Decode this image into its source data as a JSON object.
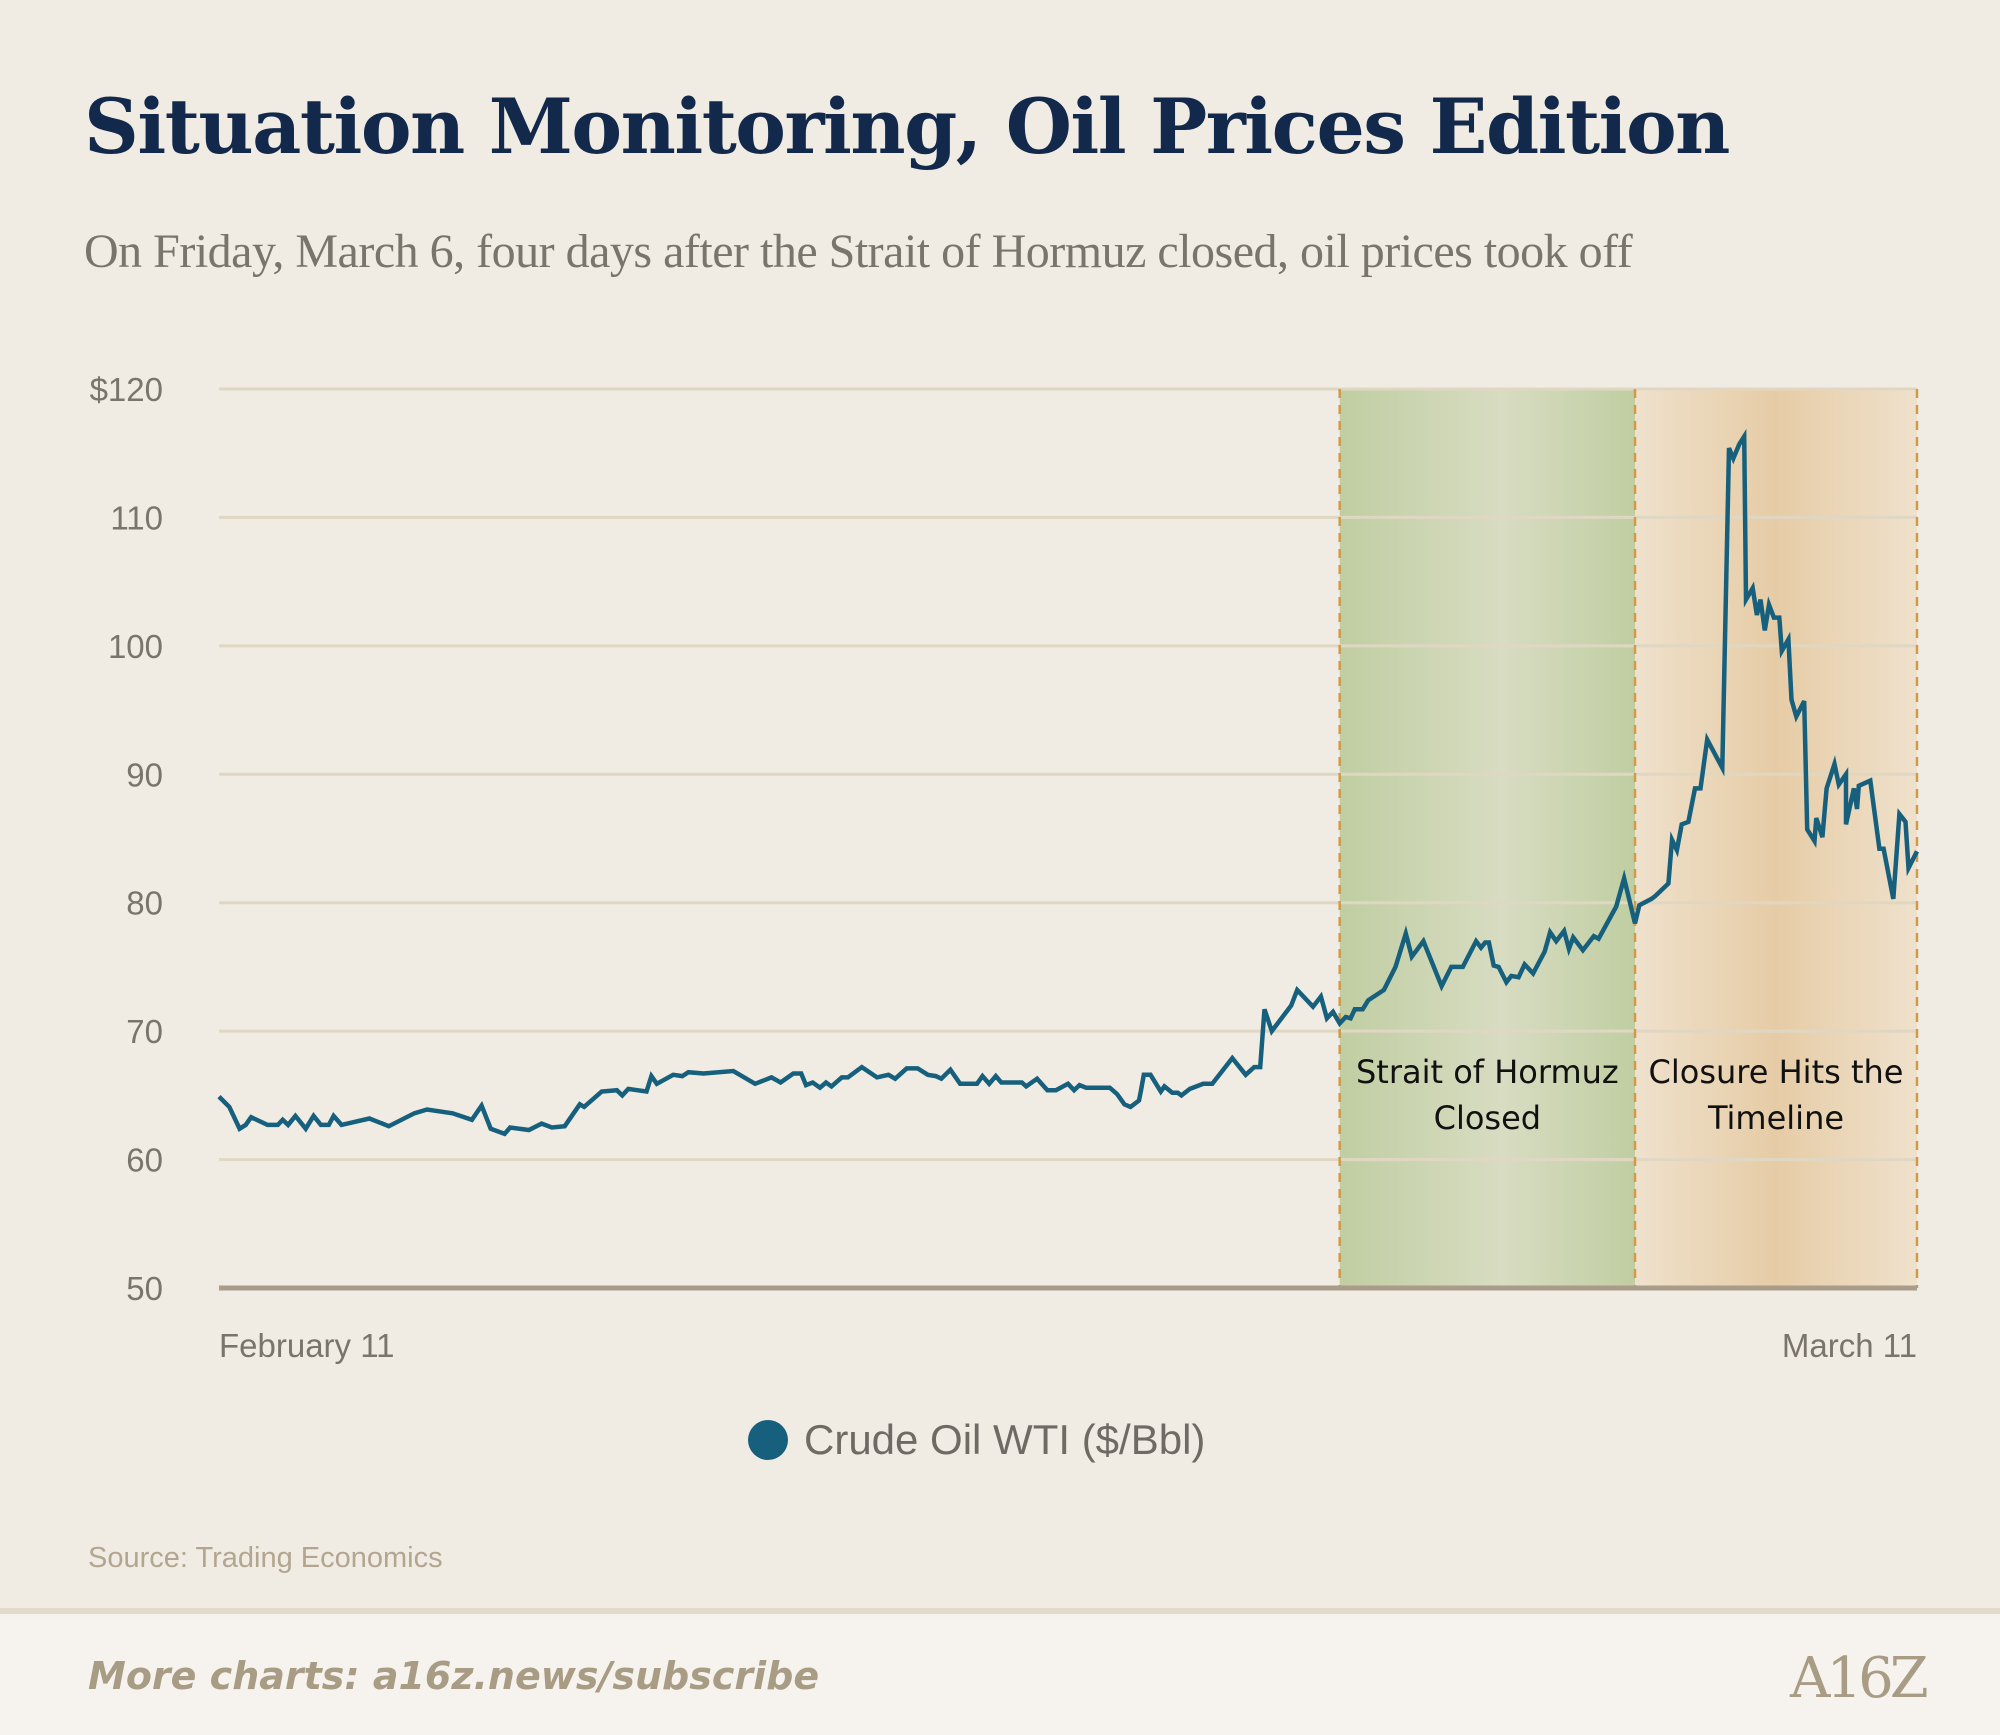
{
  "header": {
    "title": "Situation Monitoring, Oil Prices Edition",
    "subtitle": "On Friday, March 6, four days after the Strait of Hormuz closed, oil prices took off"
  },
  "chart_data": {
    "type": "line",
    "title": "Situation Monitoring, Oil Prices Edition",
    "xlabel": "",
    "ylabel": "",
    "x_unit": "days since February 11",
    "xlim": [
      0,
      28
    ],
    "ylim": [
      50,
      120
    ],
    "yticks": [
      50,
      60,
      70,
      80,
      90,
      100,
      110,
      120
    ],
    "ytick_labels": [
      "50",
      "60",
      "70",
      "80",
      "90",
      "100",
      "110",
      "$120"
    ],
    "xtick_labels": [
      {
        "x": 0,
        "label": "February 11"
      },
      {
        "x": 28,
        "label": "March 11"
      }
    ],
    "grid": true,
    "legend_placement": "bottom-center",
    "series": [
      {
        "name": "Crude Oil WTI ($/Bbl)",
        "color": "#17607d",
        "points": [
          [
            0,
            64.9
          ],
          [
            0.17,
            64.1
          ],
          [
            0.34,
            62.4
          ],
          [
            0.44,
            62.7
          ],
          [
            0.53,
            63.3
          ],
          [
            0.8,
            62.7
          ],
          [
            0.97,
            62.7
          ],
          [
            1.05,
            63.1
          ],
          [
            1.14,
            62.7
          ],
          [
            1.26,
            63.4
          ],
          [
            1.43,
            62.4
          ],
          [
            1.56,
            63.4
          ],
          [
            1.68,
            62.7
          ],
          [
            1.81,
            62.7
          ],
          [
            1.89,
            63.4
          ],
          [
            2.02,
            62.7
          ],
          [
            2.48,
            63.2
          ],
          [
            2.8,
            62.6
          ],
          [
            3.22,
            63.6
          ],
          [
            3.43,
            63.9
          ],
          [
            3.85,
            63.6
          ],
          [
            4.17,
            63.1
          ],
          [
            4.33,
            64.2
          ],
          [
            4.48,
            62.4
          ],
          [
            4.71,
            62.0
          ],
          [
            4.8,
            62.5
          ],
          [
            5.11,
            62.3
          ],
          [
            5.32,
            62.8
          ],
          [
            5.49,
            62.5
          ],
          [
            5.7,
            62.6
          ],
          [
            5.95,
            64.3
          ],
          [
            6.02,
            64.1
          ],
          [
            6.31,
            65.3
          ],
          [
            6.56,
            65.4
          ],
          [
            6.65,
            65.0
          ],
          [
            6.75,
            65.5
          ],
          [
            7.05,
            65.3
          ],
          [
            7.13,
            66.5
          ],
          [
            7.22,
            65.9
          ],
          [
            7.49,
            66.6
          ],
          [
            7.64,
            66.5
          ],
          [
            7.74,
            66.8
          ],
          [
            7.99,
            66.7
          ],
          [
            8.48,
            66.9
          ],
          [
            8.84,
            65.9
          ],
          [
            9.11,
            66.4
          ],
          [
            9.26,
            66.0
          ],
          [
            9.47,
            66.7
          ],
          [
            9.6,
            66.7
          ],
          [
            9.68,
            65.8
          ],
          [
            9.79,
            66.0
          ],
          [
            9.91,
            65.6
          ],
          [
            10.01,
            66.0
          ],
          [
            10.1,
            65.7
          ],
          [
            10.27,
            66.4
          ],
          [
            10.37,
            66.4
          ],
          [
            10.6,
            67.2
          ],
          [
            10.85,
            66.4
          ],
          [
            11.04,
            66.6
          ],
          [
            11.15,
            66.3
          ],
          [
            11.34,
            67.1
          ],
          [
            11.52,
            67.1
          ],
          [
            11.69,
            66.6
          ],
          [
            11.82,
            66.5
          ],
          [
            11.91,
            66.3
          ],
          [
            12.06,
            67.0
          ],
          [
            12.22,
            65.9
          ],
          [
            12.5,
            65.9
          ],
          [
            12.59,
            66.5
          ],
          [
            12.7,
            65.9
          ],
          [
            12.81,
            66.5
          ],
          [
            12.9,
            66.0
          ],
          [
            13.24,
            66.0
          ],
          [
            13.31,
            65.7
          ],
          [
            13.49,
            66.3
          ],
          [
            13.66,
            65.4
          ],
          [
            13.8,
            65.4
          ],
          [
            14.0,
            65.9
          ],
          [
            14.1,
            65.4
          ],
          [
            14.19,
            65.8
          ],
          [
            14.3,
            65.6
          ],
          [
            14.69,
            65.6
          ],
          [
            14.81,
            65.1
          ],
          [
            14.93,
            64.3
          ],
          [
            15.03,
            64.1
          ],
          [
            15.17,
            64.6
          ],
          [
            15.2,
            65.3
          ],
          [
            15.25,
            66.6
          ],
          [
            15.36,
            66.6
          ],
          [
            15.53,
            65.3
          ],
          [
            15.59,
            65.7
          ],
          [
            15.72,
            65.2
          ],
          [
            15.81,
            65.2
          ],
          [
            15.87,
            65.0
          ],
          [
            16.01,
            65.5
          ],
          [
            16.23,
            65.9
          ],
          [
            16.38,
            65.9
          ],
          [
            16.71,
            67.9
          ],
          [
            16.93,
            66.6
          ],
          [
            17.07,
            67.2
          ],
          [
            17.17,
            67.2
          ],
          [
            17.24,
            71.7
          ],
          [
            17.36,
            70.0
          ],
          [
            17.68,
            72.0
          ],
          [
            17.78,
            73.2
          ],
          [
            18.04,
            71.9
          ],
          [
            18.17,
            72.7
          ],
          [
            18.27,
            71.0
          ],
          [
            18.37,
            71.5
          ],
          [
            18.48,
            70.6
          ],
          [
            18.58,
            71.1
          ],
          [
            18.66,
            71.0
          ],
          [
            18.73,
            71.7
          ],
          [
            18.86,
            71.7
          ],
          [
            18.95,
            72.4
          ],
          [
            19.21,
            73.2
          ],
          [
            19.4,
            75.0
          ],
          [
            19.57,
            77.6
          ],
          [
            19.67,
            75.8
          ],
          [
            19.86,
            77.0
          ],
          [
            20.16,
            73.5
          ],
          [
            20.32,
            75.0
          ],
          [
            20.51,
            75.0
          ],
          [
            20.73,
            77.0
          ],
          [
            20.81,
            76.5
          ],
          [
            20.88,
            76.9
          ],
          [
            20.94,
            76.9
          ],
          [
            21.02,
            75.1
          ],
          [
            21.1,
            75.0
          ],
          [
            21.23,
            73.8
          ],
          [
            21.31,
            74.3
          ],
          [
            21.43,
            74.2
          ],
          [
            21.53,
            75.2
          ],
          [
            21.67,
            74.5
          ],
          [
            21.86,
            76.2
          ],
          [
            21.95,
            77.7
          ],
          [
            22.05,
            77.0
          ],
          [
            22.18,
            77.8
          ],
          [
            22.26,
            76.4
          ],
          [
            22.33,
            77.3
          ],
          [
            22.49,
            76.3
          ],
          [
            22.67,
            77.4
          ],
          [
            22.75,
            77.2
          ],
          [
            23.04,
            79.7
          ],
          [
            23.17,
            81.9
          ],
          [
            23.35,
            78.4
          ],
          [
            23.42,
            79.8
          ],
          [
            23.62,
            80.3
          ],
          [
            23.68,
            80.5
          ],
          [
            23.9,
            81.5
          ],
          [
            23.96,
            84.9
          ],
          [
            24.04,
            84.1
          ],
          [
            24.12,
            86.1
          ],
          [
            24.23,
            86.3
          ],
          [
            24.34,
            88.9
          ],
          [
            24.43,
            88.9
          ],
          [
            24.54,
            92.7
          ],
          [
            24.79,
            90.5
          ],
          [
            24.9,
            115.4
          ],
          [
            24.97,
            114.6
          ],
          [
            25.07,
            115.7
          ],
          [
            25.15,
            116.3
          ],
          [
            25.18,
            103.6
          ],
          [
            25.29,
            104.5
          ],
          [
            25.36,
            102.4
          ],
          [
            25.42,
            103.6
          ],
          [
            25.49,
            101.2
          ],
          [
            25.56,
            103.2
          ],
          [
            25.64,
            102.2
          ],
          [
            25.73,
            102.2
          ],
          [
            25.77,
            99.6
          ],
          [
            25.88,
            100.5
          ],
          [
            25.93,
            95.8
          ],
          [
            26.01,
            94.5
          ],
          [
            26.14,
            95.7
          ],
          [
            26.19,
            85.7
          ],
          [
            26.31,
            84.8
          ],
          [
            26.34,
            86.6
          ],
          [
            26.44,
            85.1
          ],
          [
            26.51,
            88.9
          ],
          [
            26.64,
            90.8
          ],
          [
            26.71,
            89.2
          ],
          [
            26.83,
            90.0
          ],
          [
            26.83,
            86.1
          ],
          [
            26.96,
            88.9
          ],
          [
            27.01,
            87.3
          ],
          [
            27.04,
            89.1
          ],
          [
            27.23,
            89.5
          ],
          [
            27.38,
            84.2
          ],
          [
            27.45,
            84.2
          ],
          [
            27.61,
            80.3
          ],
          [
            27.71,
            86.9
          ],
          [
            27.81,
            86.3
          ],
          [
            27.86,
            82.7
          ],
          [
            28.0,
            84.0
          ]
        ]
      }
    ],
    "annotations": [
      {
        "label": "Strait of Hormuz Closed",
        "lines": [
          "Strait of Hormuz",
          "Closed"
        ],
        "x_start": 18.48,
        "x_end": 23.35,
        "color": "#c3cfa6"
      },
      {
        "label": "Closure Hits the Timeline",
        "lines": [
          "Closure Hits the",
          "Timeline"
        ],
        "x_start": 23.35,
        "x_end": 28,
        "color": "#e6cca6"
      }
    ]
  },
  "legend": {
    "label": "Crude Oil WTI ($/Bbl)"
  },
  "footer": {
    "source": "Source: Trading Economics",
    "more": "More charts: a16z.news/subscribe",
    "logo_text": "A16Z"
  }
}
